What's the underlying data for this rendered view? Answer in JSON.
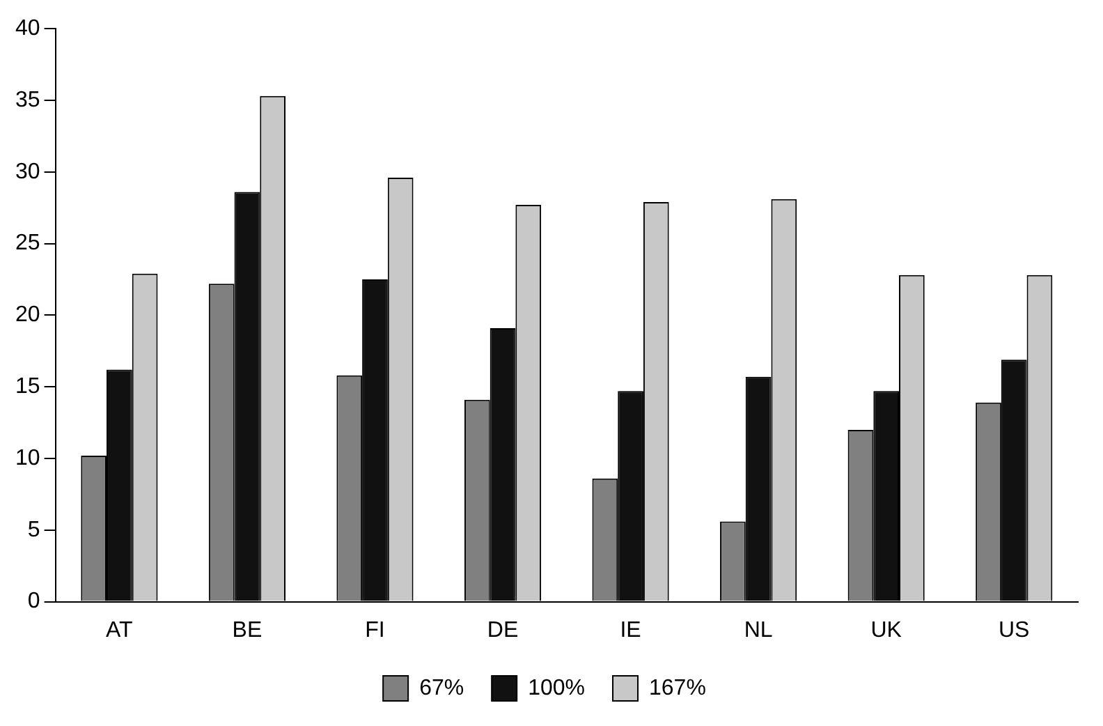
{
  "chart_data": {
    "type": "bar",
    "categories": [
      "AT",
      "BE",
      "FI",
      "DE",
      "IE",
      "NL",
      "UK",
      "US"
    ],
    "series": [
      {
        "name": "67%",
        "color": "#808080",
        "values": [
          10.2,
          22.2,
          15.8,
          14.1,
          8.6,
          5.6,
          12.0,
          13.9
        ]
      },
      {
        "name": "100%",
        "color": "#111111",
        "values": [
          16.2,
          28.6,
          22.5,
          19.1,
          14.7,
          15.7,
          14.7,
          16.9
        ]
      },
      {
        "name": "167%",
        "color": "#c8c8c8",
        "values": [
          22.9,
          35.3,
          29.6,
          27.7,
          27.9,
          28.1,
          22.8,
          22.8
        ]
      }
    ],
    "ylim": [
      0,
      40
    ],
    "yticks": [
      0,
      5,
      10,
      15,
      20,
      25,
      30,
      35,
      40
    ],
    "grid": false,
    "legend": "bottom"
  }
}
